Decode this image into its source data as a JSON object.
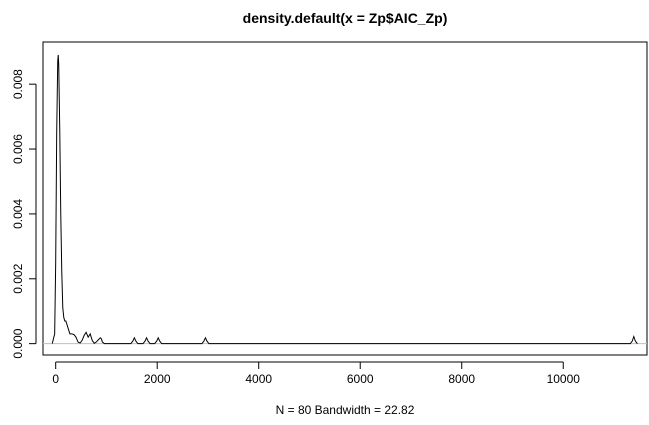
{
  "chart_data": {
    "type": "line",
    "title": "density.default(x = Zp$AIC_Zp)",
    "xlabel": "N = 80   Bandwidth = 22.82",
    "ylabel": "",
    "xlim": [
      -250,
      11650
    ],
    "ylim": [
      -0.00035,
      0.0093
    ],
    "x_ticks": [
      0,
      2000,
      4000,
      6000,
      8000,
      10000
    ],
    "x_tick_labels": [
      "0",
      "2000",
      "4000",
      "6000",
      "8000",
      "10000"
    ],
    "y_ticks": [
      0,
      0.002,
      0.004,
      0.006,
      0.008
    ],
    "y_tick_labels": [
      "0.000",
      "0.002",
      "0.004",
      "0.006",
      "0.008"
    ],
    "baseline": 0,
    "grid": false,
    "series": [
      {
        "x": [
          -68,
          -20,
          0,
          20,
          40,
          50,
          60,
          80,
          100,
          120,
          140,
          160,
          180,
          200,
          240,
          280,
          320,
          360,
          400,
          440,
          480,
          520,
          560,
          600,
          640,
          680,
          720,
          760,
          800,
          840,
          880,
          900,
          920,
          960,
          1000,
          1480,
          1520,
          1550,
          1580,
          1620,
          1720,
          1760,
          1790,
          1820,
          1860,
          1950,
          1990,
          2020,
          2050,
          2090,
          2880,
          2920,
          2950,
          2980,
          3020,
          11320,
          11360,
          11390,
          11420,
          11460
        ],
        "y": [
          0,
          0.0003,
          0.0025,
          0.0065,
          0.0087,
          0.0089,
          0.0086,
          0.0066,
          0.004,
          0.0022,
          0.0011,
          0.0008,
          0.0007,
          0.0007,
          0.0005,
          0.0003,
          0.0003,
          0.00028,
          0.0002,
          5e-05,
          2e-05,
          0.0001,
          0.00025,
          0.00035,
          0.0002,
          0.0003,
          0.0001,
          1e-05,
          5e-05,
          0.00012,
          0.00018,
          0.00015,
          5e-05,
          0.0,
          0.0,
          0.0,
          8e-05,
          0.00018,
          8e-05,
          0.0,
          0.0,
          8e-05,
          0.00018,
          8e-05,
          0.0,
          0.0,
          8e-05,
          0.00018,
          8e-05,
          0.0,
          0.0,
          8e-05,
          0.00018,
          8e-05,
          0.0,
          0.0,
          8e-05,
          0.00022,
          8e-05,
          0.0
        ]
      }
    ]
  }
}
